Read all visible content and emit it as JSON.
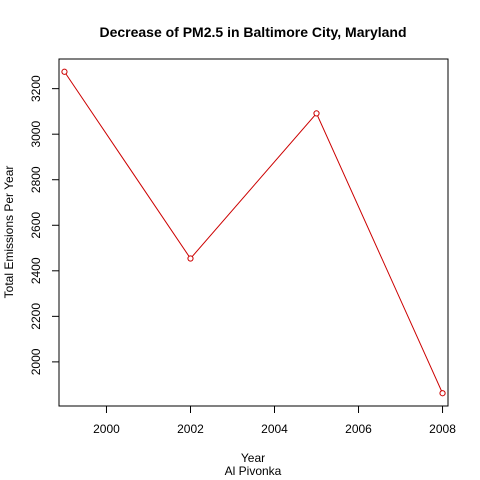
{
  "chart_data": {
    "type": "line",
    "title": "Decrease of PM2.5 in Baltimore City, Maryland",
    "xlabel": "Year",
    "ylabel": "Total Emissions Per Year",
    "sub_label": "Al Pivonka",
    "x": [
      1999,
      2002,
      2005,
      2008
    ],
    "series": [
      {
        "values": [
          3274.18,
          2453.92,
          3091.35,
          1862.28
        ],
        "color": "#cc0000",
        "marker": "open-circle"
      }
    ],
    "xlim": [
      1998.87,
      2008.13
    ],
    "ylim": [
      1806.24,
      3330.22
    ],
    "x_ticks": [
      2000,
      2002,
      2004,
      2006,
      2008
    ],
    "x_tick_labels": [
      "2000",
      "2002",
      "2004",
      "2006",
      "2008"
    ],
    "y_ticks": [
      2000,
      2200,
      2400,
      2600,
      2800,
      3000,
      3200
    ],
    "y_tick_labels": [
      "2000",
      "2200",
      "2400",
      "2600",
      "2800",
      "3000",
      "3200"
    ],
    "grid": false,
    "legend": "none"
  }
}
